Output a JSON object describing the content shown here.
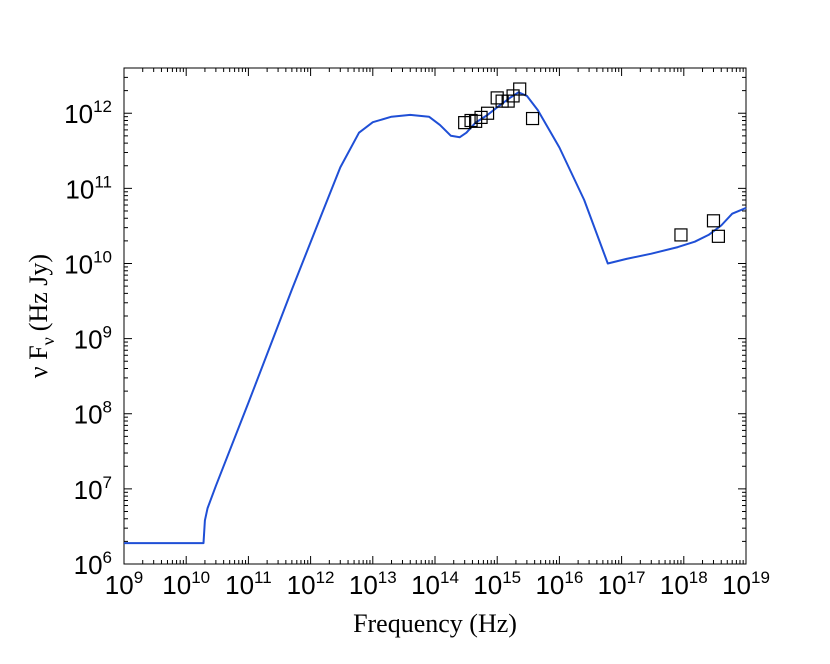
{
  "chart_data": {
    "type": "line",
    "xlabel": "Frequency (Hz)",
    "ylabel": "ν F",
    "ylabel_subscript": "ν",
    "ylabel_units": "(Hz Jy)",
    "x_scale": "log",
    "y_scale": "log",
    "xlim": [
      1000000000.0,
      1e+19
    ],
    "ylim": [
      1000000.0,
      4000000000000.0
    ],
    "grid": false,
    "x_tick_exponents": [
      "9",
      "10",
      "11",
      "12",
      "13",
      "14",
      "15",
      "16",
      "17",
      "18",
      "19"
    ],
    "y_tick_exponents": [
      "6",
      "7",
      "8",
      "9",
      "10",
      "11",
      "12"
    ],
    "tick_base": "10",
    "series": [
      {
        "type": "line",
        "color": "#1f4fd6",
        "x": [
          1000000000.0,
          19000000000.0,
          20000000000.0,
          22000000000.0,
          30000000000.0,
          100000000000.0,
          500000000000.0,
          1500000000000.0,
          3000000000000.0,
          6000000000000.0,
          10000000000000.0,
          20000000000000.0,
          40000000000000.0,
          80000000000000.0,
          120000000000000.0,
          180000000000000.0,
          250000000000000.0,
          320000000000000.0,
          450000000000000.0,
          700000000000000.0,
          1000000000000000.0,
          1600000000000000.0,
          2200000000000000.0,
          3000000000000000.0,
          4500000000000000.0,
          1e+16,
          2.5e+16,
          6e+16,
          1.2e+17,
          3e+17,
          8e+17,
          1.5e+18,
          2.5e+18,
          4e+18,
          6e+18,
          1e+19
        ],
        "y": [
          1900000.0,
          1900000.0,
          3800000.0,
          5500000.0,
          11000000.0,
          140000000.0,
          4500000000.0,
          45000000000.0,
          190000000000.0,
          550000000000.0,
          760000000000.0,
          900000000000.0,
          950000000000.0,
          900000000000.0,
          700000000000.0,
          500000000000.0,
          480000000000.0,
          550000000000.0,
          750000000000.0,
          950000000000.0,
          1200000000000.0,
          1600000000000.0,
          1900000000000.0,
          1700000000000.0,
          1100000000000.0,
          350000000000.0,
          70000000000.0,
          10000000000.0,
          11500000000.0,
          13500000000.0,
          16500000000.0,
          19500000000.0,
          24000000000.0,
          32000000000.0,
          46000000000.0,
          55000000000.0
        ]
      },
      {
        "type": "scatter",
        "marker": "square",
        "x": [
          300000000000000.0,
          380000000000000.0,
          450000000000000.0,
          550000000000000.0,
          700000000000000.0,
          1000000000000000.0,
          1200000000000000.0,
          1500000000000000.0,
          1800000000000000.0,
          2300000000000000.0,
          3700000000000000.0,
          9e+17,
          3e+18,
          3.6e+18
        ],
        "y": [
          750000000000.0,
          800000000000.0,
          780000000000.0,
          880000000000.0,
          1000000000000.0,
          1600000000000.0,
          1450000000000.0,
          1450000000000.0,
          1700000000000.0,
          2100000000000.0,
          850000000000.0,
          24000000000.0,
          37000000000.0,
          23000000000.0
        ]
      }
    ]
  }
}
